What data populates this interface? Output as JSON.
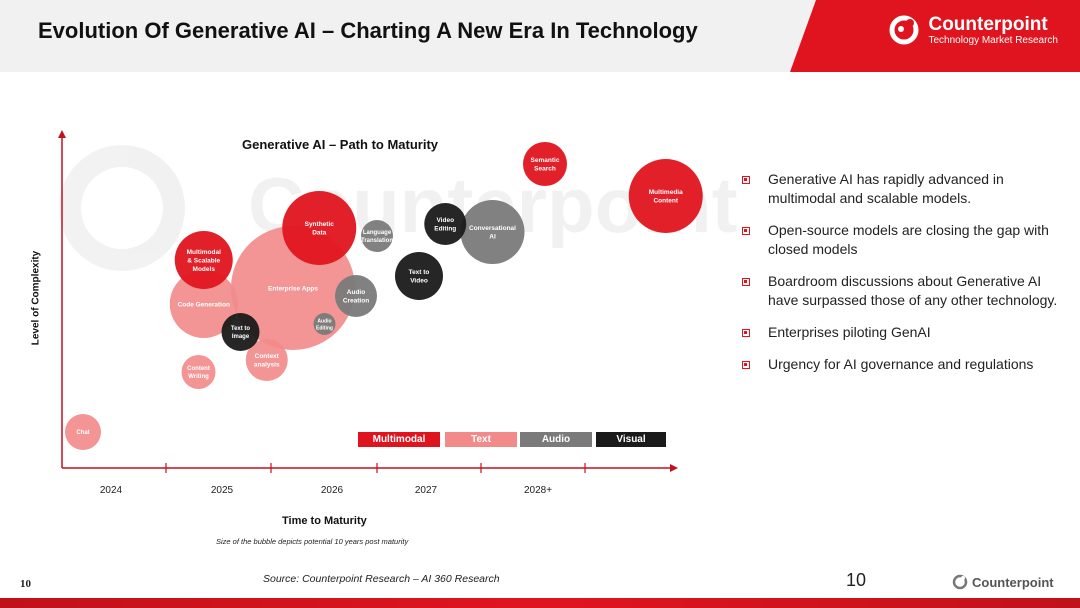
{
  "header": {
    "title": "Evolution Of Generative AI – Charting A New Era In Technology",
    "logo_name": "Counterpoint",
    "logo_tagline": "Technology Market Research",
    "brand_color": "#e0141e"
  },
  "chart_data": {
    "type": "scatter",
    "title": "Generative AI – Path to Maturity",
    "xlabel": "Time to Maturity",
    "ylabel": "Level of Complexity",
    "note": "Size of the bubble depicts potential 10 years post maturity",
    "x_ticks": [
      "2024",
      "2025",
      "2026",
      "2027",
      "2028+"
    ],
    "legend": [
      {
        "name": "Multimodal",
        "color": "#e0141e"
      },
      {
        "name": "Text",
        "color": "#f28a8a"
      },
      {
        "name": "Audio",
        "color": "#7a7a7a"
      },
      {
        "name": "Visual",
        "color": "#1a1a1a"
      }
    ],
    "bubbles": [
      {
        "label": [
          "Chat"
        ],
        "category": "Text",
        "x": 0.2,
        "y": 0.9,
        "size": 18
      },
      {
        "label": [
          "Content",
          "Writing"
        ],
        "category": "Text",
        "x": 1.3,
        "y": 2.4,
        "size": 17
      },
      {
        "label": [
          "Code Generation"
        ],
        "category": "Text",
        "x": 1.35,
        "y": 4.1,
        "size": 34
      },
      {
        "label": [
          "Multimodal",
          "& Scalable",
          "Models"
        ],
        "category": "Multimodal",
        "x": 1.35,
        "y": 5.2,
        "size": 29
      },
      {
        "label": [
          "Text to",
          "Image"
        ],
        "category": "Visual",
        "x": 1.7,
        "y": 3.4,
        "size": 19
      },
      {
        "label": [
          "Context",
          "analysis"
        ],
        "category": "Text",
        "x": 1.95,
        "y": 2.7,
        "size": 21
      },
      {
        "label": [
          "Enterprise Apps"
        ],
        "category": "Text",
        "x": 2.2,
        "y": 4.5,
        "size": 62
      },
      {
        "label": [
          "Synthetic",
          "Data"
        ],
        "category": "Multimodal",
        "x": 2.45,
        "y": 6.0,
        "size": 37
      },
      {
        "label": [
          "Audio",
          "Editing"
        ],
        "category": "Audio",
        "x": 2.5,
        "y": 3.6,
        "size": 11
      },
      {
        "label": [
          "Audio",
          "Creation"
        ],
        "category": "Audio",
        "x": 2.8,
        "y": 4.3,
        "size": 21
      },
      {
        "label": [
          "Language",
          "Translation"
        ],
        "category": "Audio",
        "x": 3.0,
        "y": 5.8,
        "size": 16
      },
      {
        "label": [
          "Text to",
          "Video"
        ],
        "category": "Visual",
        "x": 3.4,
        "y": 4.8,
        "size": 24
      },
      {
        "label": [
          "Video",
          "Editing"
        ],
        "category": "Visual",
        "x": 3.65,
        "y": 6.1,
        "size": 21
      },
      {
        "label": [
          "Conversational",
          "AI"
        ],
        "category": "Audio",
        "x": 4.1,
        "y": 5.9,
        "size": 32
      },
      {
        "label": [
          "Semantic",
          "Search"
        ],
        "category": "Multimodal",
        "x": 4.6,
        "y": 7.6,
        "size": 22
      },
      {
        "label": [
          "Multimedia",
          "Content"
        ],
        "category": "Multimodal",
        "x": 5.75,
        "y": 6.8,
        "size": 37
      }
    ]
  },
  "bullets": [
    "Generative AI has rapidly advanced in multimodal and scalable models.",
    "Open-source models are closing the gap with closed models",
    "Boardroom discussions about Generative AI have surpassed those of any other technology.",
    "Enterprises piloting GenAI",
    "Urgency for AI governance and regulations"
  ],
  "footer": {
    "slide_number_left": "10",
    "source": "Source: Counterpoint Research – AI 360 Research",
    "page_number": "10",
    "logo_name": "Counterpoint"
  }
}
